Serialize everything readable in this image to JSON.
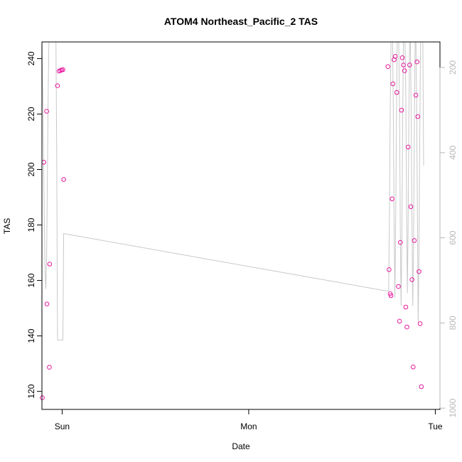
{
  "chart_data": {
    "type": "scatter",
    "title": "ATOM4 Northeast_Pacific_2 TAS",
    "xlabel": "Date",
    "ylabel": "TAS",
    "x_ticks": [
      {
        "label": "Sun",
        "value": 0
      },
      {
        "label": "Mon",
        "value": 24
      },
      {
        "label": "Tue",
        "value": 48
      }
    ],
    "x_unit": "hours from Sun 00:00",
    "xlim": [
      -2.6,
      48.6
    ],
    "ylim": [
      113.5,
      246
    ],
    "y_ticks": [
      120,
      140,
      160,
      180,
      200,
      220,
      240
    ],
    "y2_label": "",
    "y2_ticks": [
      200,
      400,
      600,
      800,
      1000
    ],
    "y2lim": [
      1003,
      140
    ],
    "grid": false,
    "series": [
      {
        "kind": "points",
        "color": "#e6199e",
        "x": [
          -2.55,
          -2.35,
          -2.0,
          -1.95,
          -1.65,
          -1.6,
          -0.6,
          -0.4,
          -0.2,
          -0.05,
          0.1,
          0.2,
          41.9,
          42.05,
          42.2,
          42.3,
          42.45,
          42.55,
          42.7,
          42.85,
          43.05,
          43.25,
          43.4,
          43.5,
          43.65,
          43.75,
          43.9,
          44.05,
          44.2,
          44.35,
          44.5,
          44.7,
          44.85,
          45.0,
          45.15,
          45.3,
          45.5,
          45.65,
          45.75,
          45.9,
          46.05,
          46.2
        ],
        "y": [
          117.7,
          202.6,
          221.0,
          151.5,
          128.7,
          165.9,
          230.2,
          235.5,
          235.7,
          235.9,
          236.0,
          196.4,
          237.1,
          163.9,
          155.2,
          154.5,
          189.4,
          230.9,
          239.6,
          240.8,
          227.8,
          157.8,
          145.3,
          173.7,
          221.4,
          240.3,
          237.7,
          235.6,
          150.4,
          143.2,
          208.1,
          237.7,
          186.6,
          160.3,
          128.8,
          174.4,
          226.8,
          238.8,
          219.1,
          163.2,
          144.4,
          121.7
        ]
      },
      {
        "kind": "line",
        "axis": "right",
        "color": "#c8c8c8",
        "x": [
          -2.6,
          -2.5,
          -2.4,
          -2.3,
          -2.2,
          -2.1,
          -2.0,
          -1.9,
          -1.8,
          -1.7,
          -1.6,
          -1.5,
          -1.4,
          -1.3,
          -1.2,
          -1.1,
          -1.0,
          -0.9,
          -0.8,
          -0.7,
          -0.6,
          0.0,
          0.1,
          0.2,
          41.8,
          42.0,
          42.1,
          42.2,
          42.3,
          42.4,
          42.5,
          42.6,
          42.7,
          42.8,
          42.9,
          43.0,
          43.1,
          43.2,
          43.3,
          43.4,
          43.5,
          43.6,
          43.7,
          43.8,
          43.9,
          44.0,
          44.1,
          44.2,
          44.3,
          44.4,
          44.5,
          44.6,
          44.7,
          44.8,
          44.9,
          45.0,
          45.1,
          45.2,
          45.3,
          45.4,
          45.5,
          45.6,
          45.7,
          45.8,
          45.9,
          46.0,
          46.1,
          46.2,
          46.3,
          46.4,
          46.5
        ],
        "y": [
          140,
          250,
          400,
          550,
          680,
          720,
          650,
          450,
          260,
          140,
          140,
          140,
          140,
          140,
          140,
          140,
          140,
          140,
          140,
          400,
          840,
          840,
          840,
          590,
          725,
          725,
          550,
          300,
          140,
          140,
          140,
          300,
          580,
          740,
          560,
          320,
          140,
          140,
          140,
          300,
          580,
          760,
          600,
          330,
          140,
          140,
          140,
          260,
          520,
          730,
          570,
          310,
          140,
          140,
          300,
          560,
          760,
          620,
          350,
          140,
          140,
          280,
          560,
          800,
          620,
          360,
          140,
          140,
          140,
          140,
          430
        ]
      }
    ]
  }
}
